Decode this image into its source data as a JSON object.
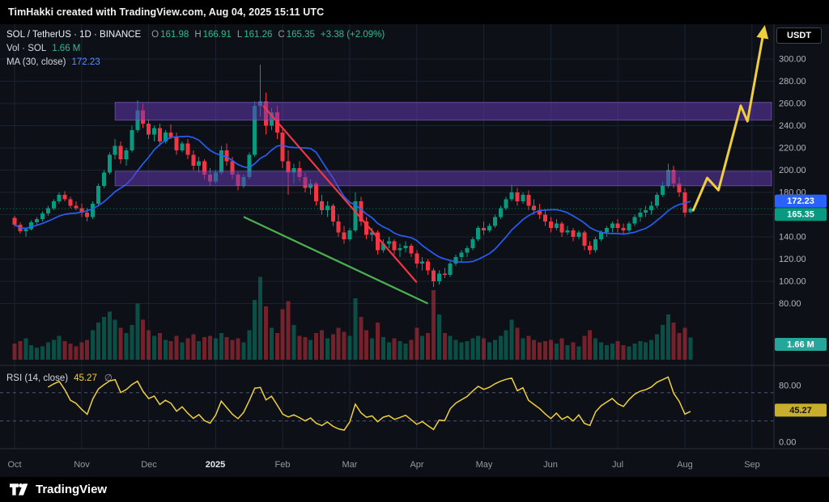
{
  "topbar": {
    "text": "TimHakki created with TradingView.com, Aug 04, 2025 15:11 UTC"
  },
  "legend": {
    "symbol_line": "SOL / TetherUS · 1D · BINANCE",
    "ohlc": {
      "o_label": "O",
      "o": "161.98",
      "h_label": "H",
      "h": "166.91",
      "l_label": "L",
      "l": "161.26",
      "c_label": "C",
      "c": "165.35",
      "change": "+3.38 (+2.09%)"
    },
    "volume_label": "Vol · SOL",
    "volume_value": "1.66 M",
    "ma_label": "MA (30, close)",
    "ma_value": "172.23"
  },
  "rsi_legend": {
    "label": "RSI (14, close)",
    "value": "45.27",
    "disabled_icon": "∅"
  },
  "price_scale": {
    "unit": "USDT",
    "labels": [
      "300.00",
      "280.00",
      "260.00",
      "240.00",
      "220.00",
      "200.00",
      "180.00",
      "160.00",
      "140.00",
      "120.00",
      "100.00",
      "80.00"
    ],
    "badges": {
      "ma": "172.23",
      "close": "165.35",
      "volume": "1.66 M",
      "rsi": "45.27"
    }
  },
  "rsi_scale": {
    "labels": [
      "80.00",
      "0.00"
    ]
  },
  "footer": {
    "brand": "TradingView"
  },
  "colors": {
    "background": "#0d1117",
    "up": "#089981",
    "down": "#f23645",
    "ma_line": "#2962ff",
    "yellow": "#f0cf3e",
    "band_fill": "#673ab7",
    "band_edge": "#8a6fd1",
    "grid": "#1b2231",
    "divider": "#2a2e39",
    "scale_text": "#b2b5be",
    "rsi_band_line": "#4c537f"
  },
  "chart_data": {
    "type": "candlestick",
    "symbol": "SOL/USDT",
    "exchange": "BINANCE",
    "interval": "1D",
    "month_labels": [
      "Oct",
      "Nov",
      "Dec",
      "2025",
      "Feb",
      "Mar",
      "Apr",
      "May",
      "Jun",
      "Jul",
      "Aug",
      "Sep"
    ],
    "candles_per_month": 12,
    "price_ticks": [
      300,
      280,
      260,
      240,
      220,
      200,
      180,
      160,
      140,
      120,
      100,
      80
    ],
    "visible_price_range": [
      72,
      335
    ],
    "last_ohlc": [
      161.98,
      166.91,
      161.26,
      165.35
    ],
    "last_close": 165.35,
    "ma_period_days": 30,
    "ma_window_candles": 12,
    "ma_value": 172.23,
    "volume_last_m": 1.66,
    "rsi_period_days": 14,
    "rsi_window_candles": 6,
    "rsi_value": 45.27,
    "rsi_bands": [
      70,
      30
    ],
    "rsi_scale_ticks": [
      80,
      0
    ],
    "zones": [
      {
        "name": "upper-resistance-band",
        "price_from": 245,
        "price_to": 261,
        "start_index": 18,
        "end_index": 135.5
      },
      {
        "name": "lower-resistance-band",
        "price_from": 186,
        "price_to": 199,
        "start_index": 18,
        "end_index": 135.5
      }
    ],
    "trendlines": [
      {
        "name": "red-downtrend-line",
        "color": "#f23645",
        "points": [
          [
            44.5,
            258
          ],
          [
            72,
            99
          ]
        ]
      },
      {
        "name": "green-support-line",
        "color": "#4caf50",
        "points": [
          [
            41,
            158
          ],
          [
            74,
            80
          ]
        ]
      }
    ],
    "projection": {
      "name": "yellow-forecast-path",
      "color": "#f0cf3e",
      "arrow": true,
      "points": [
        [
          121.5,
          164
        ],
        [
          124,
          193
        ],
        [
          126,
          182
        ],
        [
          130,
          258
        ],
        [
          131.2,
          244
        ],
        [
          134,
          322
        ]
      ]
    },
    "candles": [
      [
        157,
        159,
        149,
        151,
        1.2
      ],
      [
        151,
        153,
        143,
        145,
        1.4
      ],
      [
        145,
        148,
        140,
        147,
        1.6
      ],
      [
        147,
        155,
        146,
        153,
        1.1
      ],
      [
        153,
        158,
        150,
        156,
        0.9
      ],
      [
        156,
        163,
        154,
        161,
        1.0
      ],
      [
        161,
        168,
        159,
        166,
        1.3
      ],
      [
        166,
        174,
        164,
        172,
        1.5
      ],
      [
        172,
        180,
        170,
        178,
        1.8
      ],
      [
        178,
        181,
        172,
        174,
        1.4
      ],
      [
        174,
        176,
        166,
        168,
        1.2
      ],
      [
        168,
        172,
        164,
        166,
        1.0
      ],
      [
        166,
        170,
        158,
        162,
        1.3
      ],
      [
        162,
        166,
        154,
        158,
        1.5
      ],
      [
        158,
        172,
        156,
        170,
        2.2
      ],
      [
        170,
        188,
        168,
        186,
        2.8
      ],
      [
        186,
        200,
        184,
        198,
        3.2
      ],
      [
        198,
        216,
        196,
        214,
        3.6
      ],
      [
        214,
        228,
        210,
        222,
        3.0
      ],
      [
        222,
        226,
        206,
        210,
        2.4
      ],
      [
        210,
        220,
        204,
        218,
        2.0
      ],
      [
        218,
        240,
        216,
        236,
        2.6
      ],
      [
        236,
        263,
        234,
        254,
        4.2
      ],
      [
        254,
        260,
        238,
        242,
        3.0
      ],
      [
        242,
        246,
        228,
        232,
        2.2
      ],
      [
        232,
        240,
        226,
        238,
        1.8
      ],
      [
        238,
        242,
        222,
        226,
        2.0
      ],
      [
        226,
        236,
        224,
        234,
        1.5
      ],
      [
        234,
        241,
        228,
        230,
        1.4
      ],
      [
        230,
        234,
        214,
        218,
        1.8
      ],
      [
        218,
        226,
        216,
        224,
        1.3
      ],
      [
        224,
        228,
        210,
        214,
        1.6
      ],
      [
        214,
        218,
        200,
        204,
        1.9
      ],
      [
        204,
        212,
        198,
        208,
        1.4
      ],
      [
        208,
        210,
        192,
        196,
        1.7
      ],
      [
        196,
        202,
        186,
        190,
        1.8
      ],
      [
        190,
        200,
        188,
        198,
        1.6
      ],
      [
        198,
        222,
        196,
        218,
        2.0
      ],
      [
        218,
        224,
        204,
        208,
        1.7
      ],
      [
        208,
        212,
        192,
        196,
        1.5
      ],
      [
        196,
        198,
        182,
        186,
        1.6
      ],
      [
        186,
        196,
        184,
        194,
        1.3
      ],
      [
        194,
        216,
        192,
        214,
        2.2
      ],
      [
        214,
        262,
        212,
        258,
        4.5
      ],
      [
        258,
        295,
        248,
        262,
        6.2
      ],
      [
        262,
        270,
        232,
        240,
        4.0
      ],
      [
        240,
        256,
        236,
        252,
        2.4
      ],
      [
        252,
        258,
        228,
        234,
        2.0
      ],
      [
        234,
        238,
        202,
        208,
        3.8
      ],
      [
        208,
        218,
        178,
        198,
        4.4
      ],
      [
        198,
        206,
        188,
        202,
        2.6
      ],
      [
        202,
        208,
        190,
        194,
        1.8
      ],
      [
        194,
        198,
        180,
        184,
        1.7
      ],
      [
        184,
        192,
        178,
        188,
        1.5
      ],
      [
        188,
        190,
        168,
        172,
        2.0
      ],
      [
        172,
        178,
        160,
        164,
        2.2
      ],
      [
        164,
        172,
        158,
        168,
        1.6
      ],
      [
        168,
        170,
        150,
        154,
        1.9
      ],
      [
        154,
        160,
        140,
        144,
        2.4
      ],
      [
        144,
        150,
        134,
        138,
        2.1
      ],
      [
        138,
        148,
        136,
        146,
        1.8
      ],
      [
        146,
        180,
        144,
        172,
        4.6
      ],
      [
        172,
        176,
        150,
        154,
        3.2
      ],
      [
        154,
        158,
        138,
        142,
        2.2
      ],
      [
        142,
        148,
        136,
        144,
        1.6
      ],
      [
        144,
        146,
        124,
        128,
        2.8
      ],
      [
        128,
        138,
        126,
        134,
        1.7
      ],
      [
        134,
        140,
        130,
        136,
        1.3
      ],
      [
        136,
        138,
        124,
        128,
        1.6
      ],
      [
        128,
        134,
        122,
        130,
        1.4
      ],
      [
        130,
        136,
        126,
        132,
        1.2
      ],
      [
        132,
        134,
        122,
        125,
        1.5
      ],
      [
        125,
        128,
        112,
        116,
        2.4
      ],
      [
        116,
        122,
        110,
        118,
        1.8
      ],
      [
        118,
        120,
        106,
        110,
        2.0
      ],
      [
        110,
        112,
        95,
        100,
        5.2
      ],
      [
        100,
        110,
        97,
        107,
        3.4
      ],
      [
        107,
        112,
        103,
        106,
        2.0
      ],
      [
        106,
        118,
        104,
        116,
        1.8
      ],
      [
        116,
        124,
        114,
        122,
        1.5
      ],
      [
        122,
        128,
        118,
        126,
        1.3
      ],
      [
        126,
        132,
        122,
        130,
        1.4
      ],
      [
        130,
        140,
        128,
        138,
        1.6
      ],
      [
        138,
        150,
        136,
        148,
        1.8
      ],
      [
        148,
        154,
        142,
        146,
        1.6
      ],
      [
        146,
        152,
        144,
        150,
        1.3
      ],
      [
        150,
        160,
        148,
        158,
        1.5
      ],
      [
        158,
        168,
        156,
        166,
        1.8
      ],
      [
        166,
        176,
        164,
        174,
        2.2
      ],
      [
        174,
        187,
        172,
        180,
        3.0
      ],
      [
        180,
        184,
        168,
        172,
        2.4
      ],
      [
        172,
        180,
        170,
        178,
        1.6
      ],
      [
        178,
        182,
        164,
        168,
        1.8
      ],
      [
        168,
        174,
        160,
        164,
        1.5
      ],
      [
        164,
        170,
        156,
        160,
        1.3
      ],
      [
        160,
        164,
        150,
        154,
        1.4
      ],
      [
        154,
        158,
        144,
        148,
        1.5
      ],
      [
        148,
        156,
        146,
        152,
        1.2
      ],
      [
        152,
        154,
        140,
        144,
        1.6
      ],
      [
        144,
        150,
        142,
        146,
        1.1
      ],
      [
        146,
        148,
        136,
        140,
        1.3
      ],
      [
        140,
        146,
        138,
        144,
        1.0
      ],
      [
        144,
        146,
        128,
        132,
        1.8
      ],
      [
        132,
        136,
        124,
        128,
        2.2
      ],
      [
        128,
        140,
        126,
        138,
        1.6
      ],
      [
        138,
        146,
        136,
        144,
        1.3
      ],
      [
        144,
        150,
        140,
        148,
        1.1
      ],
      [
        148,
        154,
        144,
        152,
        1.2
      ],
      [
        152,
        156,
        144,
        148,
        1.4
      ],
      [
        148,
        152,
        142,
        146,
        1.1
      ],
      [
        146,
        154,
        144,
        152,
        1.0
      ],
      [
        152,
        160,
        150,
        158,
        1.2
      ],
      [
        158,
        166,
        154,
        162,
        1.4
      ],
      [
        162,
        168,
        158,
        164,
        1.3
      ],
      [
        164,
        172,
        160,
        168,
        1.5
      ],
      [
        168,
        180,
        166,
        178,
        1.9
      ],
      [
        178,
        190,
        176,
        186,
        2.6
      ],
      [
        186,
        206,
        184,
        200,
        3.4
      ],
      [
        200,
        204,
        184,
        188,
        2.8
      ],
      [
        188,
        194,
        176,
        180,
        2.0
      ],
      [
        180,
        184,
        158,
        162,
        2.4
      ],
      [
        161.98,
        166.91,
        161.26,
        165.35,
        1.66
      ]
    ]
  }
}
